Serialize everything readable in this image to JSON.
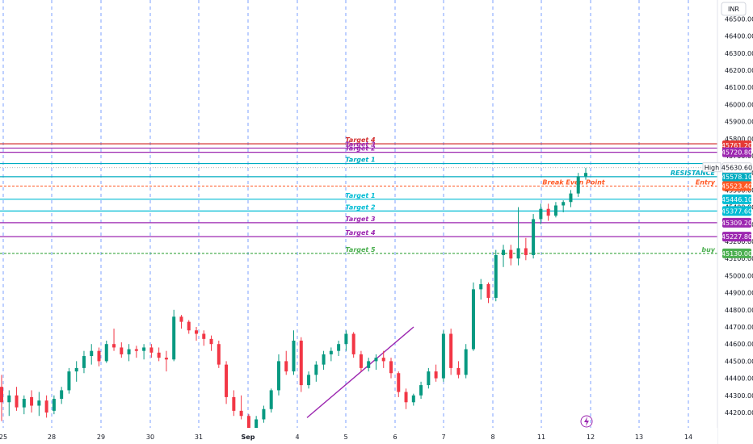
{
  "chart_data": {
    "type": "candlestick",
    "currency": "INR",
    "ylim": [
      44150,
      46590
    ],
    "y_ticks": [
      44200,
      44300,
      44400,
      44500,
      44600,
      44700,
      44800,
      44900,
      45000,
      45100,
      45200,
      45300,
      45400,
      45500,
      45600,
      45700,
      45800,
      45900,
      46000,
      46100,
      46200,
      46300,
      46400,
      46500
    ],
    "x_ticks": [
      "25",
      "28",
      "29",
      "30",
      "31",
      "Sep",
      "4",
      "5",
      "6",
      "7",
      "8",
      "11",
      "12",
      "13",
      "14"
    ],
    "grid": "vertical-dashed",
    "horizontal_levels": [
      {
        "label": "Target 4",
        "price": 45770,
        "color": "#d32f2f",
        "label_side": "upper"
      },
      {
        "label": "Target 3",
        "price": 45745,
        "color": "#9c27b0",
        "label_side": "upper"
      },
      {
        "label": "Target 2",
        "price": 45720.8,
        "color": "#9c27b0",
        "label_side": "upper",
        "badge": "45720.80"
      },
      {
        "label": "Target 1",
        "price": 45655,
        "color": "#00acc1",
        "label_side": "upper"
      },
      {
        "label": "RESISTANCE",
        "price": 45578.1,
        "color": "#00acc1",
        "badge": "45578.10"
      },
      {
        "label": "Break Even Point",
        "price": 45523.4,
        "color": "#ff5722",
        "badge": "45523.40",
        "right_label": "Entry"
      },
      {
        "label": "Target 1",
        "price": 45446.1,
        "color": "#00bcd4",
        "badge": "45446.10"
      },
      {
        "label": "Target 2",
        "price": 45377.6,
        "color": "#00bcd4",
        "badge": "45377.60"
      },
      {
        "label": "Target 3",
        "price": 45309.2,
        "color": "#9c27b0",
        "badge": "45309.20"
      },
      {
        "label": "Target 4",
        "price": 45227.8,
        "color": "#9c27b0",
        "badge": "45227.80"
      },
      {
        "label": "Target 5",
        "price": 45130,
        "color": "#4caf50",
        "badge": "45130.00",
        "right_label": "buy"
      }
    ],
    "badges_top": [
      {
        "text": "45761.20",
        "color": "#e53935"
      }
    ],
    "high_label": {
      "text": "High",
      "value": "45630.60"
    },
    "trendline": {
      "from": [
        "Sep+1",
        44170
      ],
      "to": [
        "5+1.4",
        44700
      ],
      "color": "#9c27b0"
    },
    "candles": [
      {
        "t": 0,
        "o": 44350,
        "h": 44420,
        "l": 44150,
        "c": 44260
      },
      {
        "t": 1,
        "o": 44260,
        "h": 44330,
        "l": 44180,
        "c": 44300
      },
      {
        "t": 2,
        "o": 44300,
        "h": 44350,
        "l": 44210,
        "c": 44230
      },
      {
        "t": 3,
        "o": 44230,
        "h": 44300,
        "l": 44190,
        "c": 44280
      },
      {
        "t": 4,
        "o": 44290,
        "h": 44330,
        "l": 44200,
        "c": 44240
      },
      {
        "t": 5,
        "o": 44240,
        "h": 44320,
        "l": 44180,
        "c": 44270
      },
      {
        "t": 6,
        "o": 44270,
        "h": 44300,
        "l": 44170,
        "c": 44200
      },
      {
        "t": 7,
        "o": 44210,
        "h": 44300,
        "l": 44190,
        "c": 44280
      },
      {
        "t": 8,
        "o": 44280,
        "h": 44350,
        "l": 44250,
        "c": 44330
      },
      {
        "t": 9,
        "o": 44330,
        "h": 44460,
        "l": 44310,
        "c": 44440
      },
      {
        "t": 10,
        "o": 44440,
        "h": 44500,
        "l": 44380,
        "c": 44460
      },
      {
        "t": 11,
        "o": 44460,
        "h": 44560,
        "l": 44430,
        "c": 44530
      },
      {
        "t": 12,
        "o": 44530,
        "h": 44600,
        "l": 44480,
        "c": 44560
      },
      {
        "t": 13,
        "o": 44560,
        "h": 44580,
        "l": 44470,
        "c": 44500
      },
      {
        "t": 14,
        "o": 44500,
        "h": 44620,
        "l": 44490,
        "c": 44600
      },
      {
        "t": 15,
        "o": 44600,
        "h": 44690,
        "l": 44560,
        "c": 44580
      },
      {
        "t": 16,
        "o": 44580,
        "h": 44610,
        "l": 44520,
        "c": 44540
      },
      {
        "t": 17,
        "o": 44540,
        "h": 44600,
        "l": 44500,
        "c": 44570
      },
      {
        "t": 18,
        "o": 44570,
        "h": 44590,
        "l": 44520,
        "c": 44560
      },
      {
        "t": 19,
        "o": 44560,
        "h": 44600,
        "l": 44510,
        "c": 44580
      },
      {
        "t": 20,
        "o": 44580,
        "h": 44600,
        "l": 44520,
        "c": 44550
      },
      {
        "t": 21,
        "o": 44550,
        "h": 44580,
        "l": 44500,
        "c": 44520
      },
      {
        "t": 22,
        "o": 44520,
        "h": 44560,
        "l": 44440,
        "c": 44510
      },
      {
        "t": 23,
        "o": 44510,
        "h": 44800,
        "l": 44500,
        "c": 44760
      },
      {
        "t": 24,
        "o": 44760,
        "h": 44770,
        "l": 44690,
        "c": 44730
      },
      {
        "t": 25,
        "o": 44730,
        "h": 44740,
        "l": 44660,
        "c": 44680
      },
      {
        "t": 26,
        "o": 44680,
        "h": 44700,
        "l": 44620,
        "c": 44660
      },
      {
        "t": 27,
        "o": 44660,
        "h": 44680,
        "l": 44590,
        "c": 44630
      },
      {
        "t": 28,
        "o": 44630,
        "h": 44650,
        "l": 44560,
        "c": 44600
      },
      {
        "t": 29,
        "o": 44600,
        "h": 44620,
        "l": 44460,
        "c": 44480
      },
      {
        "t": 30,
        "o": 44480,
        "h": 44500,
        "l": 44250,
        "c": 44290
      },
      {
        "t": 31,
        "o": 44290,
        "h": 44330,
        "l": 44180,
        "c": 44210
      },
      {
        "t": 32,
        "o": 44210,
        "h": 44300,
        "l": 44160,
        "c": 44180
      },
      {
        "t": 33,
        "o": 44180,
        "h": 44190,
        "l": 44060,
        "c": 44080
      },
      {
        "t": 34,
        "o": 44100,
        "h": 44180,
        "l": 44080,
        "c": 44160
      },
      {
        "t": 35,
        "o": 44160,
        "h": 44240,
        "l": 44140,
        "c": 44220
      },
      {
        "t": 36,
        "o": 44220,
        "h": 44340,
        "l": 44200,
        "c": 44330
      },
      {
        "t": 37,
        "o": 44330,
        "h": 44540,
        "l": 44300,
        "c": 44500
      },
      {
        "t": 38,
        "o": 44500,
        "h": 44560,
        "l": 44420,
        "c": 44440
      },
      {
        "t": 39,
        "o": 44440,
        "h": 44680,
        "l": 44420,
        "c": 44620
      },
      {
        "t": 40,
        "o": 44620,
        "h": 44640,
        "l": 44320,
        "c": 44360
      },
      {
        "t": 41,
        "o": 44360,
        "h": 44440,
        "l": 44340,
        "c": 44420
      },
      {
        "t": 42,
        "o": 44420,
        "h": 44500,
        "l": 44380,
        "c": 44480
      },
      {
        "t": 43,
        "o": 44480,
        "h": 44560,
        "l": 44450,
        "c": 44540
      },
      {
        "t": 44,
        "o": 44540,
        "h": 44580,
        "l": 44500,
        "c": 44560
      },
      {
        "t": 45,
        "o": 44560,
        "h": 44620,
        "l": 44530,
        "c": 44600
      },
      {
        "t": 46,
        "o": 44600,
        "h": 44680,
        "l": 44560,
        "c": 44660
      },
      {
        "t": 47,
        "o": 44660,
        "h": 44670,
        "l": 44520,
        "c": 44540
      },
      {
        "t": 48,
        "o": 44540,
        "h": 44560,
        "l": 44440,
        "c": 44460
      },
      {
        "t": 49,
        "o": 44460,
        "h": 44520,
        "l": 44440,
        "c": 44500
      },
      {
        "t": 50,
        "o": 44500,
        "h": 44540,
        "l": 44450,
        "c": 44520
      },
      {
        "t": 51,
        "o": 44520,
        "h": 44560,
        "l": 44460,
        "c": 44500
      },
      {
        "t": 52,
        "o": 44500,
        "h": 44520,
        "l": 44400,
        "c": 44430
      },
      {
        "t": 53,
        "o": 44430,
        "h": 44440,
        "l": 44290,
        "c": 44320
      },
      {
        "t": 54,
        "o": 44320,
        "h": 44340,
        "l": 44220,
        "c": 44260
      },
      {
        "t": 55,
        "o": 44260,
        "h": 44310,
        "l": 44240,
        "c": 44300
      },
      {
        "t": 56,
        "o": 44300,
        "h": 44380,
        "l": 44280,
        "c": 44360
      },
      {
        "t": 57,
        "o": 44360,
        "h": 44460,
        "l": 44340,
        "c": 44440
      },
      {
        "t": 58,
        "o": 44440,
        "h": 44480,
        "l": 44380,
        "c": 44400
      },
      {
        "t": 59,
        "o": 44400,
        "h": 44680,
        "l": 44380,
        "c": 44660
      },
      {
        "t": 60,
        "o": 44660,
        "h": 44690,
        "l": 44420,
        "c": 44460
      },
      {
        "t": 61,
        "o": 44460,
        "h": 44500,
        "l": 44400,
        "c": 44420
      },
      {
        "t": 62,
        "o": 44420,
        "h": 44600,
        "l": 44400,
        "c": 44570
      },
      {
        "t": 63,
        "o": 44570,
        "h": 44960,
        "l": 44560,
        "c": 44920
      },
      {
        "t": 64,
        "o": 44920,
        "h": 44980,
        "l": 44860,
        "c": 44950
      },
      {
        "t": 65,
        "o": 44950,
        "h": 44960,
        "l": 44840,
        "c": 44870
      },
      {
        "t": 66,
        "o": 44870,
        "h": 45150,
        "l": 44850,
        "c": 45120
      },
      {
        "t": 67,
        "o": 45120,
        "h": 45180,
        "l": 45050,
        "c": 45150
      },
      {
        "t": 68,
        "o": 45150,
        "h": 45180,
        "l": 45060,
        "c": 45100
      },
      {
        "t": 69,
        "o": 45100,
        "h": 45400,
        "l": 45060,
        "c": 45160
      },
      {
        "t": 70,
        "o": 45160,
        "h": 45220,
        "l": 45090,
        "c": 45120
      },
      {
        "t": 71,
        "o": 45120,
        "h": 45360,
        "l": 45100,
        "c": 45330
      },
      {
        "t": 72,
        "o": 45330,
        "h": 45420,
        "l": 45300,
        "c": 45390
      },
      {
        "t": 73,
        "o": 45390,
        "h": 45420,
        "l": 45320,
        "c": 45350
      },
      {
        "t": 74,
        "o": 45350,
        "h": 45430,
        "l": 45340,
        "c": 45410
      },
      {
        "t": 75,
        "o": 45410,
        "h": 45440,
        "l": 45370,
        "c": 45430
      },
      {
        "t": 76,
        "o": 45430,
        "h": 45500,
        "l": 45400,
        "c": 45480
      },
      {
        "t": 77,
        "o": 45480,
        "h": 45600,
        "l": 45460,
        "c": 45580
      },
      {
        "t": 78,
        "o": 45580,
        "h": 45630,
        "l": 45560,
        "c": 45600
      }
    ]
  },
  "lightning_icon": "lightning-icon"
}
